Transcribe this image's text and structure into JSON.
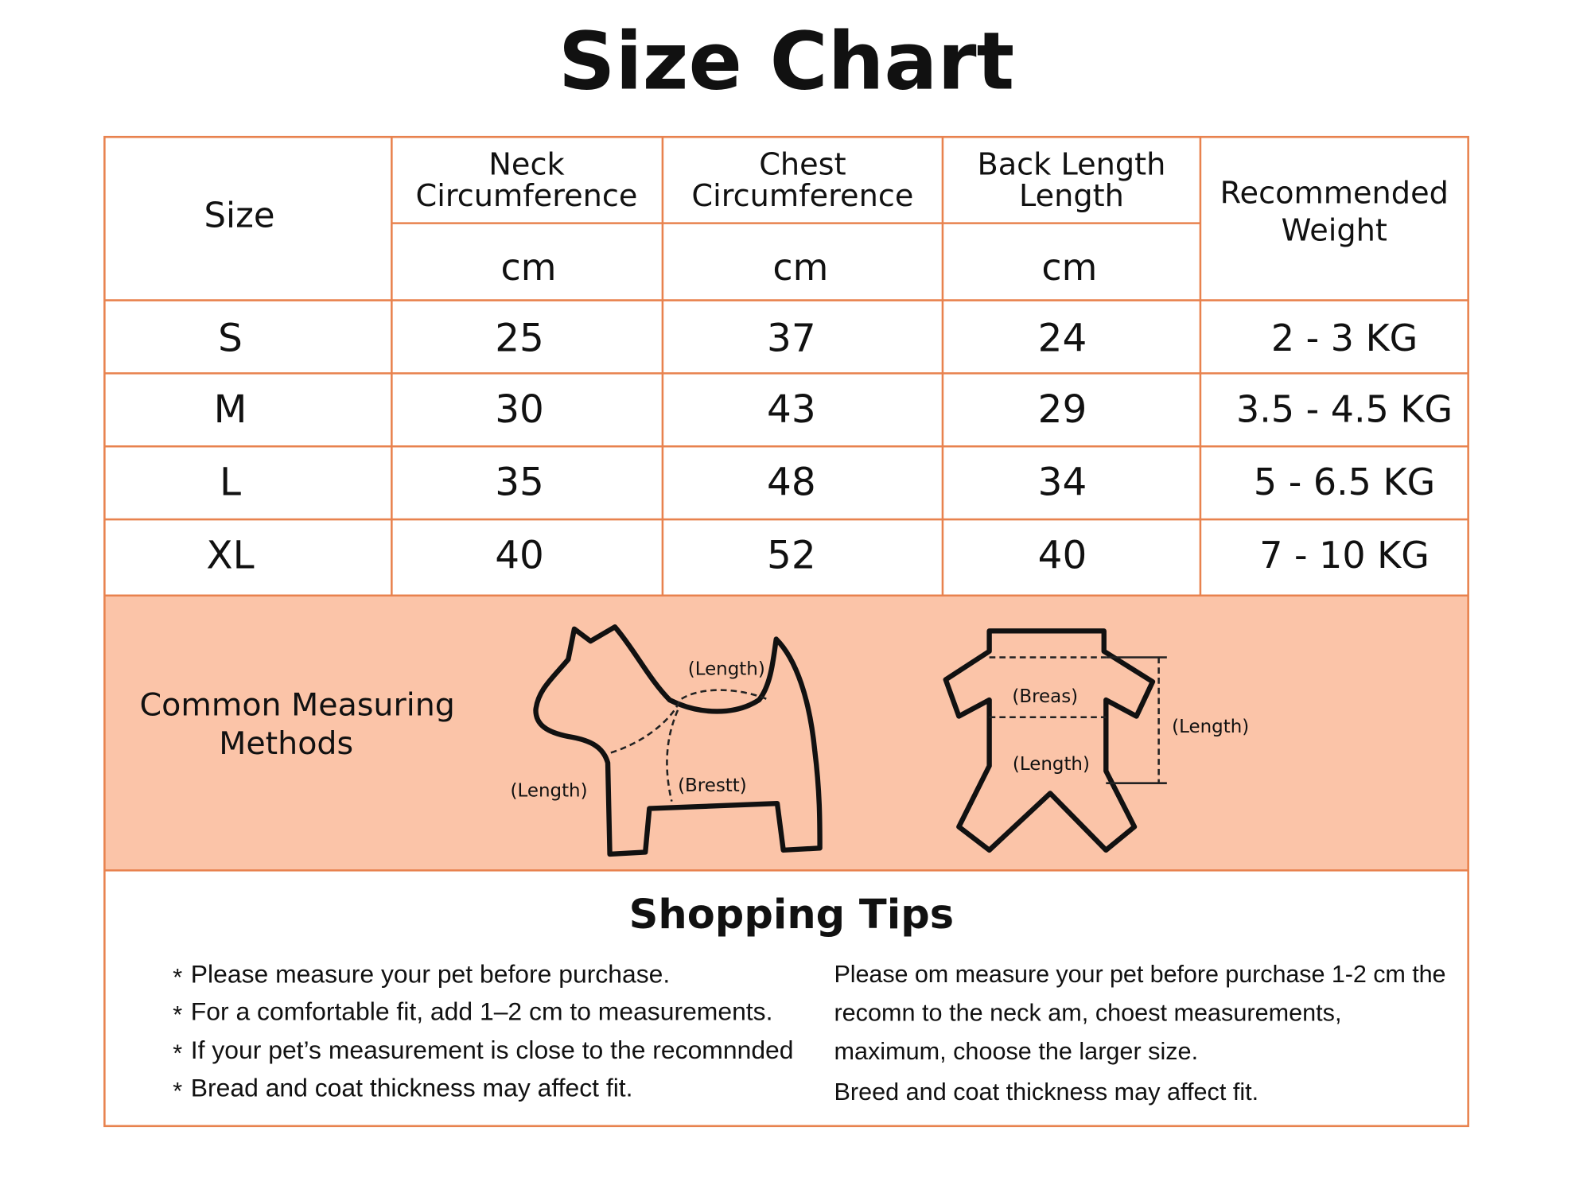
{
  "title": "Size Chart",
  "table": {
    "header": {
      "size": "Size",
      "neck": [
        "Neck",
        "Circumference"
      ],
      "chest": [
        "Chest",
        "Circumference"
      ],
      "back": [
        "Back Length",
        "Length"
      ],
      "weight": [
        "Recommended",
        "Weight"
      ],
      "units": [
        "cm",
        "cm",
        "cm"
      ]
    },
    "rows": [
      [
        "S",
        25,
        37,
        24,
        "2 - 3 KG"
      ],
      [
        "M",
        30,
        43,
        29,
        "3.5 - 4.5 KG"
      ],
      [
        "L",
        35,
        48,
        34,
        "5 - 6.5 KG"
      ],
      [
        "XL",
        40,
        52,
        40,
        "7 - 10 KG"
      ]
    ]
  },
  "methods": {
    "label": [
      "Common Measuring",
      "Methods"
    ],
    "dog_labels": [
      "(Length)",
      "(Brestt)",
      "(Length)"
    ],
    "garment_labels": [
      "(Breas)",
      "(Length)",
      "(Length)"
    ]
  },
  "tips": {
    "title": "Shopping Tips",
    "bullet": "*",
    "left": [
      "Please measure your pet before purchase.",
      "For a comfortable fit, add 1–2 cm to measurements.",
      "If your pet’s measurement is close to the recomnnded",
      "Bread and coat thickness may affect fit."
    ],
    "right": [
      "Please om measure your pet before purchase 1-2 cm the",
      "recomn to the neck am, choest measurements,",
      "maximum, choose the larger size.",
      "Breed and coat thickness may affect fit."
    ]
  }
}
